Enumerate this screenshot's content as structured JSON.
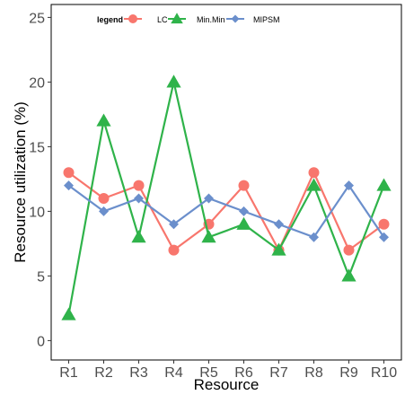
{
  "chart_data": {
    "type": "line",
    "categories": [
      "R1",
      "R2",
      "R3",
      "R4",
      "R5",
      "R6",
      "R7",
      "R8",
      "R9",
      "R10"
    ],
    "series": [
      {
        "name": "LC",
        "color": "#F8766D",
        "marker": "circle",
        "values": [
          13,
          11,
          12,
          7,
          9,
          12,
          7,
          13,
          7,
          9
        ]
      },
      {
        "name": "Min.Min",
        "color": "#2FB34A",
        "marker": "triangle",
        "values": [
          2,
          17,
          8,
          20,
          8,
          9,
          7,
          12,
          5,
          12
        ]
      },
      {
        "name": "MIPSM",
        "color": "#6B8FCC",
        "marker": "diamond",
        "values": [
          12,
          10,
          11,
          9,
          11,
          10,
          9,
          8,
          12,
          8
        ]
      }
    ],
    "xlabel": "Resource",
    "ylabel": "Resource utilization (%)",
    "ylim": [
      -1.5,
      26
    ],
    "yticks": [
      "0",
      "5",
      "10",
      "15",
      "20",
      "25"
    ],
    "legend_title": "legend",
    "legend_position": "top-left",
    "grid": false
  }
}
